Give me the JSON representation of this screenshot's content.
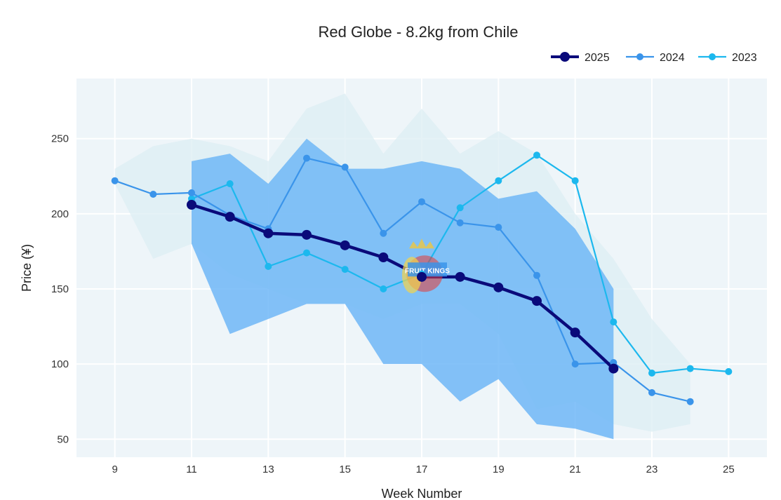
{
  "chart_data": {
    "type": "line",
    "title": "Red Globe - 8.2kg from Chile",
    "xlabel": "Week Number",
    "ylabel": "Price (¥)",
    "xlim": [
      8,
      26
    ],
    "ylim": [
      38,
      290
    ],
    "x_ticks": [
      9,
      11,
      13,
      15,
      17,
      19,
      21,
      23,
      25
    ],
    "y_ticks": [
      50,
      100,
      150,
      200,
      250
    ],
    "grid": true,
    "legend": "top-right",
    "series": [
      {
        "name": "2025",
        "color": "#0a0a7a",
        "x": [
          11,
          12,
          13,
          14,
          15,
          16,
          17,
          18,
          19,
          20,
          21,
          22
        ],
        "values": [
          206,
          198,
          187,
          186,
          179,
          171,
          158,
          158,
          151,
          142,
          121,
          97
        ],
        "band_upper": [
          235,
          240,
          220,
          250,
          230,
          230,
          235,
          230,
          210,
          215,
          190,
          150
        ],
        "band_lower": [
          180,
          120,
          130,
          140,
          140,
          100,
          100,
          75,
          90,
          60,
          57,
          50
        ],
        "band_color": "#6ab4f7"
      },
      {
        "name": "2024",
        "color": "#3a94ea",
        "x": [
          9,
          10,
          11,
          12,
          13,
          14,
          15,
          16,
          17,
          18,
          19,
          20,
          21,
          22,
          23,
          24
        ],
        "values": [
          222,
          213,
          214,
          199,
          190,
          237,
          231,
          187,
          208,
          194,
          191,
          159,
          100,
          101,
          81,
          75
        ]
      },
      {
        "name": "2023",
        "color": "#1cb8ee",
        "x": [
          11,
          12,
          13,
          14,
          15,
          16,
          17,
          18,
          19,
          20,
          21,
          22,
          23,
          24,
          25
        ],
        "values": [
          210,
          220,
          165,
          174,
          163,
          150,
          160,
          204,
          222,
          239,
          222,
          128,
          94,
          97,
          95
        ]
      }
    ],
    "background_band": {
      "color": "#dceef3",
      "x": [
        9,
        10,
        11,
        12,
        13,
        14,
        15,
        16,
        17,
        18,
        19,
        20,
        21,
        22,
        23,
        24
      ],
      "upper": [
        230,
        245,
        250,
        245,
        235,
        270,
        280,
        240,
        270,
        240,
        255,
        240,
        200,
        170,
        130,
        100
      ],
      "lower": [
        220,
        170,
        180,
        160,
        150,
        140,
        140,
        130,
        140,
        140,
        120,
        70,
        75,
        60,
        55,
        60
      ]
    },
    "watermark_text": "FRUIT KINGS"
  }
}
